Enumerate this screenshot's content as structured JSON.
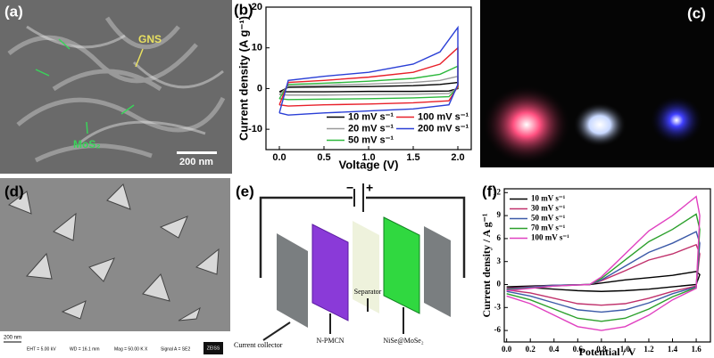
{
  "panels": {
    "a": {
      "label": "(a)",
      "gns": "GNS",
      "mos2": "MoS₂",
      "scale": "200 nm"
    },
    "c": {
      "label": "(c)"
    },
    "d": {
      "label": "(d)",
      "scale": "200 nm",
      "eht": "EHT = 5.00 kV",
      "wd": "WD = 16.1 mm",
      "mag": "Mag = 50.00 K X",
      "signal": "Signal A = SE2",
      "brand": "ZEISS"
    },
    "e": {
      "label": "(e)",
      "minus": "−",
      "plus": "+",
      "collector": "Current collector",
      "anode": "N-PMCN",
      "separator": "Separator",
      "cathode": "NiSe@MoSe₂"
    }
  },
  "chart_data": [
    {
      "type": "line",
      "label": "(b)",
      "xlabel": "Voltage (V)",
      "ylabel": "Current density (A g⁻¹)",
      "xlim": [
        -0.15,
        2.15
      ],
      "ylim": [
        -15,
        20
      ],
      "xticks": [
        {
          "value": 0,
          "label": "0.0"
        },
        0.5,
        {
          "value": 1,
          "label": "1.0"
        },
        1.5,
        {
          "value": 2,
          "label": "2.0"
        }
      ],
      "yticks": [
        -10,
        0,
        10,
        20
      ],
      "legend": "lower right",
      "legend_columns": 2,
      "x": [
        0,
        0.1,
        0.5,
        1.0,
        1.5,
        1.8,
        2.0,
        2.0,
        1.9,
        1.5,
        1.0,
        0.5,
        0.1,
        0
      ],
      "series": [
        {
          "name": "10 mV s⁻¹",
          "color": "#000000",
          "values": [
            -0.8,
            0.3,
            0.4,
            0.5,
            0.7,
            1,
            1.5,
            0,
            -0.6,
            -0.7,
            -0.7,
            -0.8,
            -0.8,
            -0.8
          ]
        },
        {
          "name": "20 mV s⁻¹",
          "color": "#9a9a9a",
          "values": [
            -1.5,
            0.6,
            0.8,
            1.1,
            1.5,
            2,
            3,
            0.2,
            -1.2,
            -1.4,
            -1.5,
            -1.6,
            -1.6,
            -1.5
          ]
        },
        {
          "name": "50 mV s⁻¹",
          "color": "#2db83d",
          "values": [
            -2.5,
            1,
            1.3,
            1.8,
            2.5,
            3.5,
            5.5,
            0.3,
            -2,
            -2.3,
            -2.5,
            -2.6,
            -2.7,
            -2.5
          ]
        },
        {
          "name": "100 mV s⁻¹",
          "color": "#e8202a",
          "values": [
            -4,
            1.5,
            2,
            2.8,
            4,
            6,
            10,
            0.5,
            -3,
            -3.5,
            -3.8,
            -4,
            -4.3,
            -4
          ]
        },
        {
          "name": "200 mV s⁻¹",
          "color": "#2a3fd6",
          "values": [
            -6,
            2,
            3,
            4,
            6,
            9,
            15,
            1,
            -4,
            -5,
            -5.5,
            -6,
            -6.5,
            -6
          ]
        }
      ]
    },
    {
      "type": "line",
      "label": "(f)",
      "xlabel": "Potential / V",
      "ylabel": "Current density / A g⁻¹",
      "xlim": [
        -0.02,
        1.72
      ],
      "ylim": [
        -7.5,
        12.5
      ],
      "xticks": [
        {
          "value": 0,
          "label": "0.0"
        },
        0.2,
        0.4,
        0.6,
        0.8,
        {
          "value": 1,
          "label": "1.0"
        },
        1.2,
        1.4,
        1.6
      ],
      "yticks": [
        -6,
        -3,
        0,
        3,
        6,
        9,
        12
      ],
      "legend": "upper left",
      "legend_columns": 1,
      "x": [
        0,
        0.4,
        0.7,
        0.8,
        1.0,
        1.2,
        1.4,
        1.6,
        1.63,
        1.6,
        1.4,
        1.2,
        1.0,
        0.8,
        0.6,
        0.4,
        0.2,
        0.0
      ],
      "series": [
        {
          "name": "10 mV s⁻¹",
          "color": "#000000",
          "values": [
            -0.3,
            -0.1,
            0,
            0.2,
            0.6,
            0.9,
            1.2,
            1.7,
            1.3,
            0,
            -0.3,
            -0.6,
            -0.8,
            -0.9,
            -0.8,
            -0.6,
            -0.4,
            -0.3
          ]
        },
        {
          "name": "30 mV s⁻¹",
          "color": "#c0306b",
          "values": [
            -0.5,
            -0.1,
            0,
            0.5,
            1.8,
            3.2,
            4,
            5.2,
            4,
            -0.2,
            -0.9,
            -1.8,
            -2.5,
            -2.7,
            -2.5,
            -1.8,
            -1.1,
            -0.7
          ]
        },
        {
          "name": "50 mV s⁻¹",
          "color": "#3c5aa8",
          "values": [
            -0.6,
            -0.1,
            0,
            0.6,
            2.4,
            4.2,
            5.4,
            6.9,
            5.4,
            -0.3,
            -1.2,
            -2.4,
            -3.3,
            -3.6,
            -3.3,
            -2.4,
            -1.5,
            -0.9
          ]
        },
        {
          "name": "70 mV s⁻¹",
          "color": "#2ca02c",
          "values": [
            -0.7,
            -0.2,
            0,
            0.8,
            3.2,
            5.6,
            7.2,
            9.2,
            7.2,
            -0.4,
            -1.6,
            -3.2,
            -4.4,
            -4.8,
            -4.4,
            -3.2,
            -2,
            -1.2
          ]
        },
        {
          "name": "100 mV s⁻¹",
          "color": "#e040c0",
          "values": [
            -0.8,
            -0.2,
            0,
            1,
            4,
            7,
            9,
            11.5,
            9,
            -0.5,
            -2,
            -4,
            -5.5,
            -6,
            -5.5,
            -4,
            -2.5,
            -1.5
          ]
        }
      ]
    }
  ]
}
